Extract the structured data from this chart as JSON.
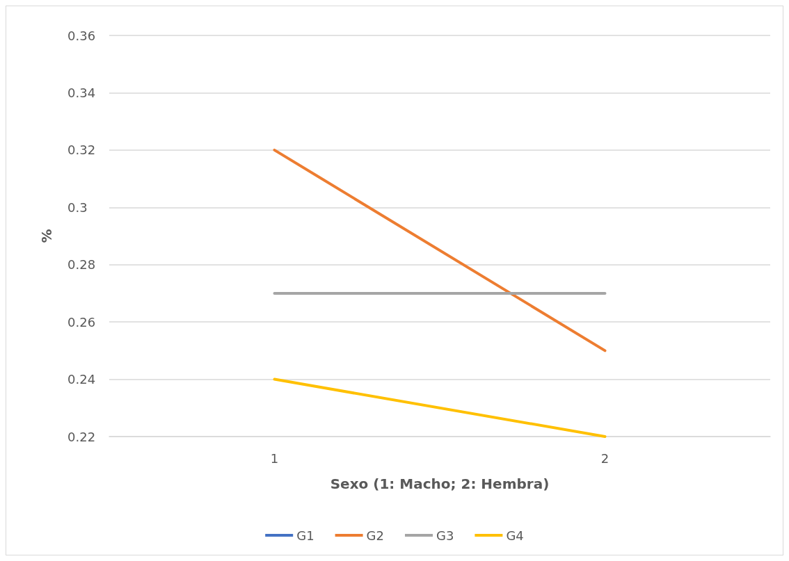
{
  "chart_data": {
    "type": "line",
    "xlabel": "Sexo (1: Macho; 2: Hembra)",
    "ylabel": "%",
    "categories": [
      "1",
      "2"
    ],
    "series": [
      {
        "name": "G1",
        "color": "#4472c4",
        "values": [
          null,
          null
        ]
      },
      {
        "name": "G2",
        "color": "#ed7d31",
        "values": [
          0.32,
          0.25
        ]
      },
      {
        "name": "G3",
        "color": "#a5a5a5",
        "values": [
          0.27,
          0.27
        ]
      },
      {
        "name": "G4",
        "color": "#ffc000",
        "values": [
          0.24,
          0.22
        ]
      }
    ],
    "ylim": [
      0.22,
      0.36
    ],
    "yticks": [
      0.22,
      0.24,
      0.26,
      0.28,
      0.3,
      0.32,
      0.34,
      0.36
    ],
    "grid": "y",
    "legend": "bottom",
    "marker": "none",
    "line_style": "solid"
  }
}
